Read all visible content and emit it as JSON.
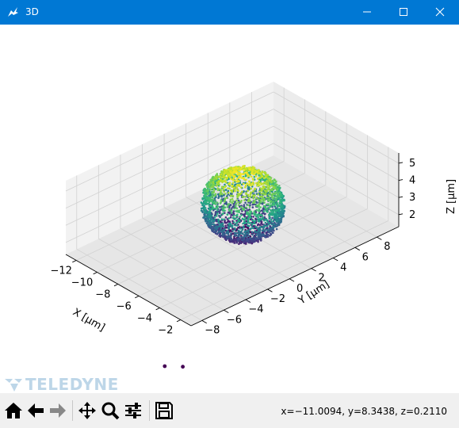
{
  "window": {
    "title": "3D",
    "icon": "matplotlib-icon"
  },
  "controls": [
    "minimize-icon",
    "maximize-icon",
    "close-icon"
  ],
  "watermark": {
    "text": "TELEDYNE"
  },
  "toolbar": {
    "buttons": [
      "home-icon",
      "back-icon",
      "forward-icon",
      "pan-icon",
      "zoom-icon",
      "configure-subplots-icon",
      "save-icon"
    ],
    "status": "x=−11.0094, y=8.3438, z=0.2110"
  },
  "chart_data": {
    "type": "scatter",
    "projection": "3d",
    "title": "",
    "xlabel": "X [µm]",
    "ylabel": "Y [µm]",
    "zlabel": "Z [µm]",
    "xticks": [
      "−12",
      "−10",
      "−8",
      "−6",
      "−4",
      "−2"
    ],
    "yticks": [
      "−8",
      "−6",
      "−4",
      "−2",
      "0",
      "2",
      "4",
      "6",
      "8"
    ],
    "zticks": [
      "2",
      "3",
      "4",
      "5"
    ],
    "xlim": [
      -13,
      -1
    ],
    "ylim": [
      -9,
      10
    ],
    "zlim": [
      1.3,
      5.6
    ],
    "grid": true,
    "colormap": "viridis",
    "cluster": {
      "shape": "sphere",
      "center_x": -6.5,
      "center_y": 1.0,
      "center_z": 3.4,
      "radius_xy": 2.8,
      "radius_z": 1.9,
      "color_by": "z"
    },
    "outliers": [
      {
        "x": -3.0,
        "y": -9.5,
        "z": -1.6
      },
      {
        "x": -2.0,
        "y": -8.8,
        "z": -1.5
      }
    ]
  }
}
